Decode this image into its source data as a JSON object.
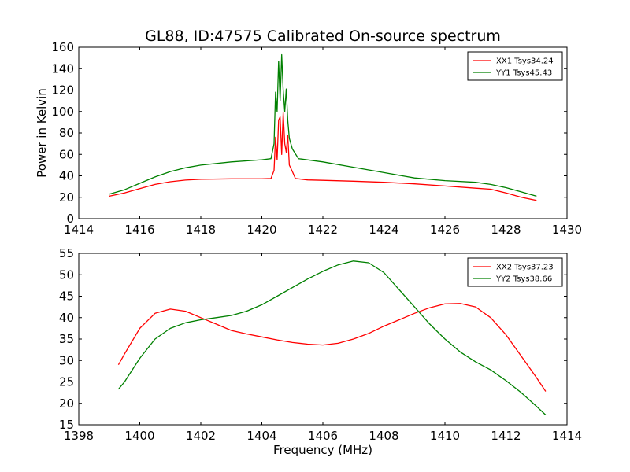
{
  "chart_data": [
    {
      "type": "line",
      "title": "GL88, ID:47575 Calibrated On-source spectrum",
      "xlabel": "",
      "ylabel": "Power in Kelvin",
      "xlim": [
        1414,
        1430
      ],
      "ylim": [
        0,
        160
      ],
      "x_ticks": [
        "1414",
        "1416",
        "1418",
        "1420",
        "1422",
        "1424",
        "1426",
        "1428",
        "1430"
      ],
      "y_ticks": [
        "0",
        "20",
        "40",
        "60",
        "80",
        "100",
        "120",
        "140",
        "160"
      ],
      "legend_position": "top-right",
      "grid": false,
      "series": [
        {
          "name": "XX1 Tsys34.24",
          "color": "#ff0000",
          "points": [
            [
              1415.0,
              21
            ],
            [
              1415.5,
              24
            ],
            [
              1416.0,
              28
            ],
            [
              1416.5,
              32
            ],
            [
              1417.0,
              34.5
            ],
            [
              1417.5,
              36
            ],
            [
              1418.0,
              36.8
            ],
            [
              1419.0,
              37.2
            ],
            [
              1420.0,
              37.2
            ],
            [
              1420.3,
              37.5
            ],
            [
              1420.4,
              45
            ],
            [
              1420.45,
              76
            ],
            [
              1420.5,
              55
            ],
            [
              1420.55,
              92
            ],
            [
              1420.6,
              95
            ],
            [
              1420.65,
              60
            ],
            [
              1420.7,
              99
            ],
            [
              1420.75,
              70
            ],
            [
              1420.8,
              62
            ],
            [
              1420.85,
              78
            ],
            [
              1420.9,
              50
            ],
            [
              1421.0,
              44
            ],
            [
              1421.1,
              37.5
            ],
            [
              1421.5,
              36.2
            ],
            [
              1422.0,
              35.8
            ],
            [
              1423.0,
              35
            ],
            [
              1424.0,
              34
            ],
            [
              1425.0,
              32.5
            ],
            [
              1426.0,
              30.5
            ],
            [
              1427.0,
              28.5
            ],
            [
              1427.5,
              27.5
            ],
            [
              1428.0,
              24
            ],
            [
              1428.5,
              20
            ],
            [
              1429.0,
              17
            ]
          ]
        },
        {
          "name": "YY1 Tsys45.43",
          "color": "#008000",
          "points": [
            [
              1415.0,
              23
            ],
            [
              1415.5,
              27
            ],
            [
              1416.0,
              33
            ],
            [
              1416.5,
              39
            ],
            [
              1417.0,
              44
            ],
            [
              1417.5,
              47.5
            ],
            [
              1418.0,
              50
            ],
            [
              1419.0,
              53
            ],
            [
              1420.0,
              55
            ],
            [
              1420.3,
              56
            ],
            [
              1420.4,
              70
            ],
            [
              1420.45,
              118
            ],
            [
              1420.5,
              100
            ],
            [
              1420.55,
              147
            ],
            [
              1420.6,
              110
            ],
            [
              1420.65,
              153
            ],
            [
              1420.7,
              120
            ],
            [
              1420.75,
              100
            ],
            [
              1420.8,
              121
            ],
            [
              1420.85,
              92
            ],
            [
              1420.9,
              75
            ],
            [
              1421.0,
              65
            ],
            [
              1421.2,
              56
            ],
            [
              1422.0,
              53
            ],
            [
              1423.0,
              48
            ],
            [
              1424.0,
              43
            ],
            [
              1425.0,
              38
            ],
            [
              1426.0,
              35.5
            ],
            [
              1427.0,
              34
            ],
            [
              1427.5,
              32
            ],
            [
              1428.0,
              29
            ],
            [
              1428.5,
              25
            ],
            [
              1429.0,
              21
            ]
          ]
        }
      ]
    },
    {
      "type": "line",
      "title": "",
      "xlabel": "Frequency (MHz)",
      "ylabel": "",
      "xlim": [
        1398,
        1414
      ],
      "ylim": [
        15,
        55
      ],
      "x_ticks": [
        "1398",
        "1400",
        "1402",
        "1404",
        "1406",
        "1408",
        "1410",
        "1412",
        "1414"
      ],
      "y_ticks": [
        "15",
        "20",
        "25",
        "30",
        "35",
        "40",
        "45",
        "50",
        "55"
      ],
      "legend_position": "top-right",
      "grid": false,
      "series": [
        {
          "name": "XX2 Tsys37.23",
          "color": "#ff0000",
          "points": [
            [
              1399.3,
              29
            ],
            [
              1399.5,
              31.5
            ],
            [
              1400.0,
              37.5
            ],
            [
              1400.5,
              41
            ],
            [
              1401.0,
              42
            ],
            [
              1401.5,
              41.5
            ],
            [
              1402.0,
              40
            ],
            [
              1402.5,
              38.5
            ],
            [
              1403.0,
              37
            ],
            [
              1403.5,
              36.2
            ],
            [
              1404.0,
              35.5
            ],
            [
              1404.5,
              34.8
            ],
            [
              1405.0,
              34.2
            ],
            [
              1405.5,
              33.8
            ],
            [
              1406.0,
              33.6
            ],
            [
              1406.5,
              34
            ],
            [
              1407.0,
              35
            ],
            [
              1407.5,
              36.3
            ],
            [
              1408.0,
              38
            ],
            [
              1408.5,
              39.5
            ],
            [
              1409.0,
              41
            ],
            [
              1409.5,
              42.3
            ],
            [
              1410.0,
              43.2
            ],
            [
              1410.5,
              43.3
            ],
            [
              1411.0,
              42.5
            ],
            [
              1411.5,
              40
            ],
            [
              1412.0,
              36
            ],
            [
              1412.5,
              31
            ],
            [
              1413.0,
              26
            ],
            [
              1413.3,
              22.8
            ]
          ]
        },
        {
          "name": "YY2 Tsys38.66",
          "color": "#008000",
          "points": [
            [
              1399.3,
              23.3
            ],
            [
              1399.5,
              25
            ],
            [
              1400.0,
              30.5
            ],
            [
              1400.5,
              35
            ],
            [
              1401.0,
              37.5
            ],
            [
              1401.5,
              38.8
            ],
            [
              1402.0,
              39.5
            ],
            [
              1402.5,
              40
            ],
            [
              1403.0,
              40.5
            ],
            [
              1403.5,
              41.5
            ],
            [
              1404.0,
              43
            ],
            [
              1404.5,
              45
            ],
            [
              1405.0,
              47
            ],
            [
              1405.5,
              49
            ],
            [
              1406.0,
              50.8
            ],
            [
              1406.5,
              52.3
            ],
            [
              1407.0,
              53.2
            ],
            [
              1407.5,
              52.8
            ],
            [
              1408.0,
              50.5
            ],
            [
              1408.5,
              46.5
            ],
            [
              1409.0,
              42.5
            ],
            [
              1409.5,
              38.5
            ],
            [
              1410.0,
              35
            ],
            [
              1410.5,
              32
            ],
            [
              1411.0,
              29.7
            ],
            [
              1411.5,
              27.8
            ],
            [
              1412.0,
              25.3
            ],
            [
              1412.5,
              22.5
            ],
            [
              1413.0,
              19.3
            ],
            [
              1413.3,
              17.3
            ]
          ]
        }
      ]
    }
  ]
}
